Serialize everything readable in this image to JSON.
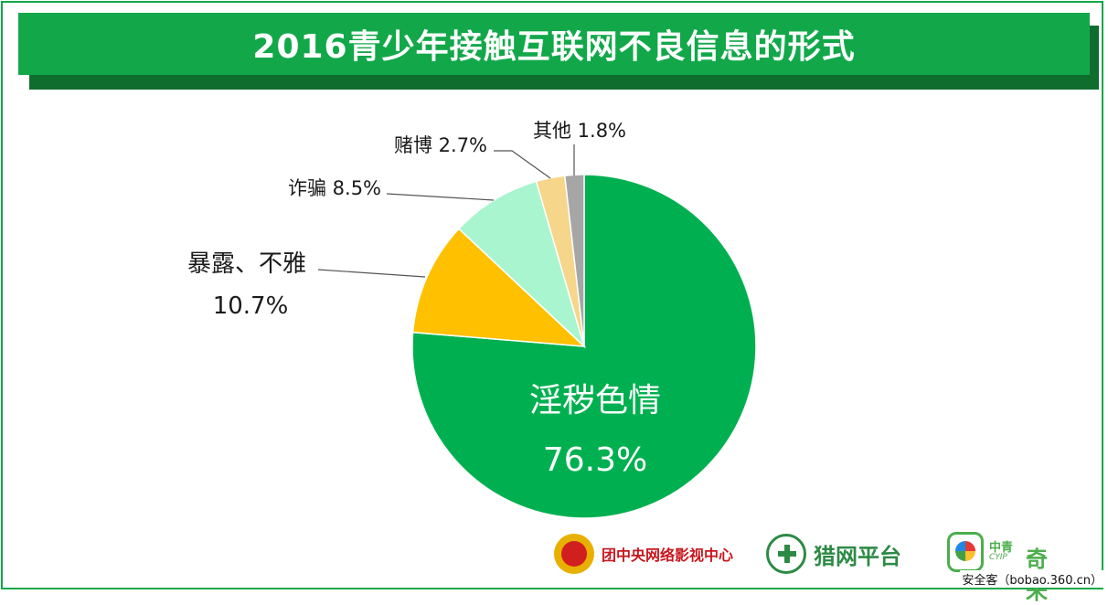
{
  "title": "2016青少年接触互联网不良信息的形式",
  "chart_data": {
    "type": "pie",
    "slices": [
      {
        "label": "淫秽色情",
        "value": 76.3,
        "display": "76.3%",
        "color": "#00b050"
      },
      {
        "label": "暴露、不雅",
        "value": 10.7,
        "display": "10.7%",
        "color": "#ffc000"
      },
      {
        "label": "诈骗",
        "value": 8.5,
        "display": "8.5%",
        "color": "#a9f5d0"
      },
      {
        "label": "赌博",
        "value": 2.7,
        "display": "2.7%",
        "color": "#f5d68a"
      },
      {
        "label": "其他",
        "value": 1.8,
        "display": "1.8%",
        "color": "#a6a6a6"
      }
    ]
  },
  "labels": {
    "porn_name": "淫秽色情",
    "porn_pct": "76.3%",
    "exposure_name": "暴露、不雅",
    "exposure_pct": "10.7%",
    "fraud": "诈骗 8.5%",
    "gambling": "赌博 2.7%",
    "other": "其他 1.8%"
  },
  "footer": {
    "logo1_text": "团中央网络影视中心",
    "logo2_text": "猎网平台",
    "logo3_top": "中青",
    "logo3_sub": "CYIP",
    "logo3_big": "奇未",
    "watermark": "安全客（bobao.360.cn）"
  }
}
